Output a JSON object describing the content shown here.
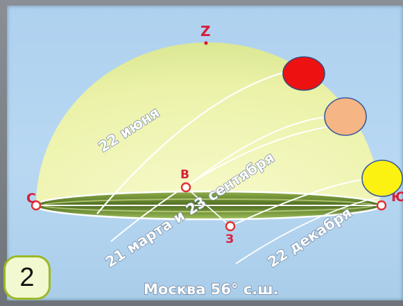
{
  "labels": {
    "zenith": "Z",
    "north": "С",
    "south": "Ю",
    "east": "В",
    "west": "З",
    "june": "22 июня",
    "equinox": "21 марта и 23 сентября",
    "december": "22 декабря",
    "caption": "Москва 56° с.ш."
  },
  "badge": {
    "number": "2"
  },
  "sun_markers": [
    {
      "name": "june-sun",
      "color": "#ee1111"
    },
    {
      "name": "equinox-sun",
      "color": "#f5b584"
    },
    {
      "name": "december-sun",
      "color": "#fbf211"
    }
  ],
  "colors": {
    "dome": "#f4f7b0",
    "horizon_ground": "#5f7f2a",
    "path_line": "#ffffff",
    "point_marker": "#e03030"
  }
}
